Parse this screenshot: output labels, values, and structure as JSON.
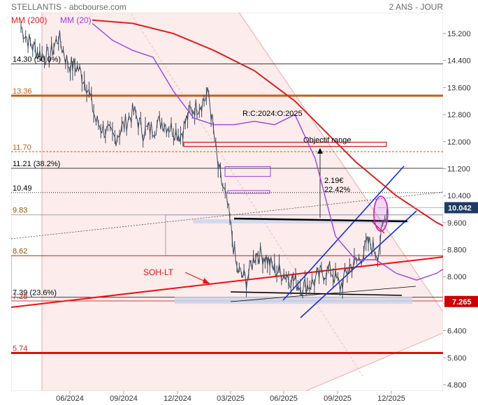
{
  "header": {
    "title": "STELLANTIS - abcbourse.com",
    "period": "2 ANS - JOUR"
  },
  "legend": {
    "mm200": "MM (200)",
    "mm20": "MM (20)"
  },
  "colors": {
    "price": "#3a4a5a",
    "mm200": "#e02020",
    "mm20": "#a040e0",
    "support_orange": "#c0601a",
    "channel_blue": "#1030e0",
    "channel_pink": "#fbe2e2",
    "last_price_badge": "#1f3b63",
    "target_badge": "#cc0000"
  },
  "chart_data": {
    "type": "line",
    "title": "STELLANTIS",
    "x_labels": [
      "06/2024",
      "09/2024",
      "12/2024",
      "03/2025",
      "06/2025",
      "09/2025",
      "12/2025"
    ],
    "y_ticks": [
      "15.200",
      "14.400",
      "13.600",
      "12.800",
      "12.000",
      "11.200",
      "10.400",
      "9.600",
      "8.800",
      "8.000",
      "7.200",
      "6.400",
      "5.600",
      "4.800"
    ],
    "y_tick_values": [
      15.2,
      14.4,
      13.6,
      12.8,
      12.0,
      11.2,
      10.4,
      9.6,
      8.8,
      8.0,
      7.2,
      6.4,
      5.6,
      4.8
    ],
    "ylim": [
      4.6,
      15.8
    ],
    "grid": false,
    "series": [
      {
        "name": "STELLANTIS",
        "x": [
          "2024-04",
          "2024-05",
          "2024-05",
          "2024-06",
          "2024-06",
          "2024-07",
          "2024-07",
          "2024-08",
          "2024-08",
          "2024-09",
          "2024-09",
          "2024-10",
          "2024-10",
          "2024-11",
          "2024-11",
          "2024-12",
          "2024-12",
          "2025-01",
          "2025-01",
          "2025-02",
          "2025-02",
          "2025-03",
          "2025-03",
          "2025-04",
          "2025-04",
          "2025-05",
          "2025-05",
          "2025-06",
          "2025-06",
          "2025-07",
          "2025-07",
          "2025-08",
          "2025-08",
          "2025-09",
          "2025-09",
          "2025-10",
          "2025-10",
          "2025-11",
          "2025-11",
          "2025-12"
        ],
        "values": [
          15.4,
          14.9,
          14.6,
          14.5,
          15.1,
          14.3,
          14.2,
          13.7,
          12.6,
          12.3,
          12.1,
          12.5,
          12.9,
          12.3,
          12.4,
          12.6,
          12.4,
          12.2,
          12.9,
          13.1,
          13.4,
          11.2,
          10.1,
          8.2,
          7.9,
          8.7,
          8.6,
          8.2,
          8.1,
          7.9,
          7.7,
          7.8,
          8.1,
          8.2,
          7.7,
          8.3,
          8.5,
          9.0,
          8.7,
          10.04
        ]
      },
      {
        "name": "MM (200)",
        "x": [
          "2024-04",
          "2024-06",
          "2024-08",
          "2024-10",
          "2024-12",
          "2025-02",
          "2025-03",
          "2025-04",
          "2025-05",
          "2025-06",
          "2025-07",
          "2025-08",
          "2025-09",
          "2025-10",
          "2025-11",
          "2025-12"
        ],
        "values": [
          15.6,
          15.5,
          15.2,
          14.7,
          14.1,
          13.2,
          12.6,
          12.0,
          11.4,
          10.9,
          10.4,
          10.0,
          9.6,
          9.3,
          9.1,
          9.0
        ]
      },
      {
        "name": "MM (20)",
        "x": [
          "2024-04",
          "2024-05",
          "2024-06",
          "2024-07",
          "2024-08",
          "2024-09",
          "2024-10",
          "2024-11",
          "2024-12",
          "2025-01",
          "2025-02",
          "2025-03",
          "2025-04",
          "2025-05",
          "2025-06",
          "2025-07",
          "2025-08",
          "2025-09",
          "2025-10",
          "2025-11",
          "2025-12"
        ],
        "values": [
          15.5,
          15.0,
          14.7,
          14.5,
          13.5,
          12.7,
          12.5,
          12.5,
          12.6,
          12.5,
          12.8,
          11.5,
          9.2,
          8.5,
          8.5,
          8.1,
          7.9,
          8.1,
          8.5,
          8.8,
          9.4
        ]
      }
    ],
    "horizontal_levels": [
      {
        "label": "14.30  (50.0%)",
        "value": 14.3
      },
      {
        "label": "13.36",
        "value": 13.36
      },
      {
        "label": "11.70",
        "value": 11.7
      },
      {
        "label": "11.21  (38.2%)",
        "value": 11.21
      },
      {
        "label": "10.49",
        "value": 10.49
      },
      {
        "label": "9.83",
        "value": 9.83
      },
      {
        "label": "8.62",
        "value": 8.62
      },
      {
        "label": "7.39  (23.6%)",
        "value": 7.39
      },
      {
        "label": "7.28",
        "value": 7.28
      },
      {
        "label": "5.74",
        "value": 5.74
      }
    ],
    "annotations": [
      {
        "text": "R:C:2024:O:2025"
      },
      {
        "text": "Objectif range"
      },
      {
        "text": "2.19€"
      },
      {
        "text": "22.42%"
      },
      {
        "text": "SOH-LT"
      }
    ],
    "badges": [
      {
        "text": "10.042",
        "value": 10.042
      },
      {
        "text": "7.265",
        "value": 7.265
      }
    ]
  }
}
